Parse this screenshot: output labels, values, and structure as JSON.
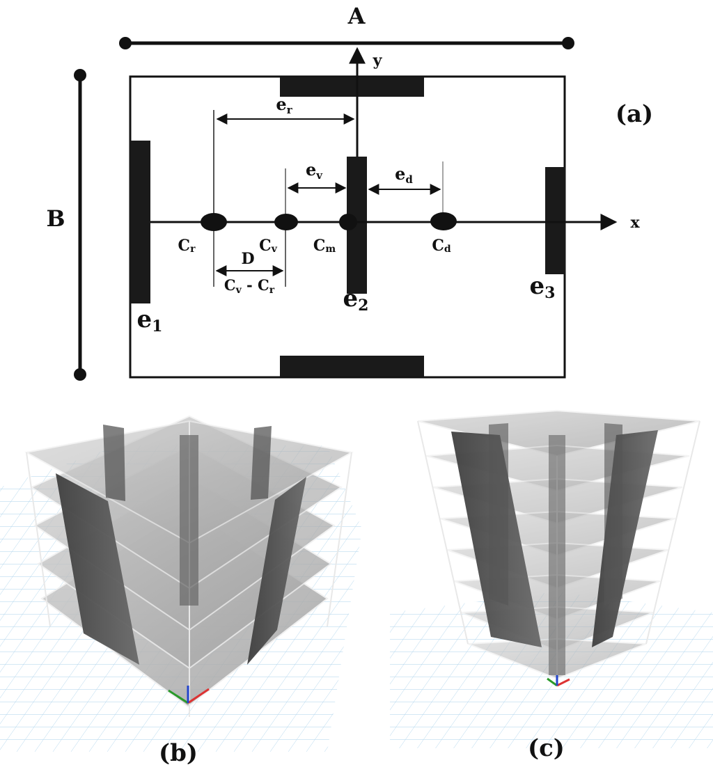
{
  "panel_a": {
    "label": "(a)",
    "dim_A": "A",
    "dim_B": "B",
    "axis_x": "x",
    "axis_y": "y",
    "eccentricities": {
      "er": "e",
      "er_sub": "r",
      "ev": "e",
      "ev_sub": "v",
      "ed": "e",
      "ed_sub": "d"
    },
    "centers": {
      "cr": "C",
      "cr_sub": "r",
      "cv": "C",
      "cv_sub": "v",
      "cm": "C",
      "cm_sub": "m",
      "cd": "C",
      "cd_sub": "d"
    },
    "distance": "D",
    "distance_expr_a": "C",
    "distance_expr_a_sub": "v",
    "distance_expr_minus": " - C",
    "distance_expr_b_sub": "r",
    "walls": {
      "e1": "e",
      "e1_sub": "1",
      "e2": "e",
      "e2_sub": "2",
      "e3": "e",
      "e3_sub": "3"
    }
  },
  "panel_b": {
    "label": "(b)"
  },
  "panel_c": {
    "label": "(c)"
  },
  "colors": {
    "ink": "#111111",
    "slab": "#b8b8b8",
    "wall": "#4a4a4a",
    "grid": "#9fcbe8"
  }
}
